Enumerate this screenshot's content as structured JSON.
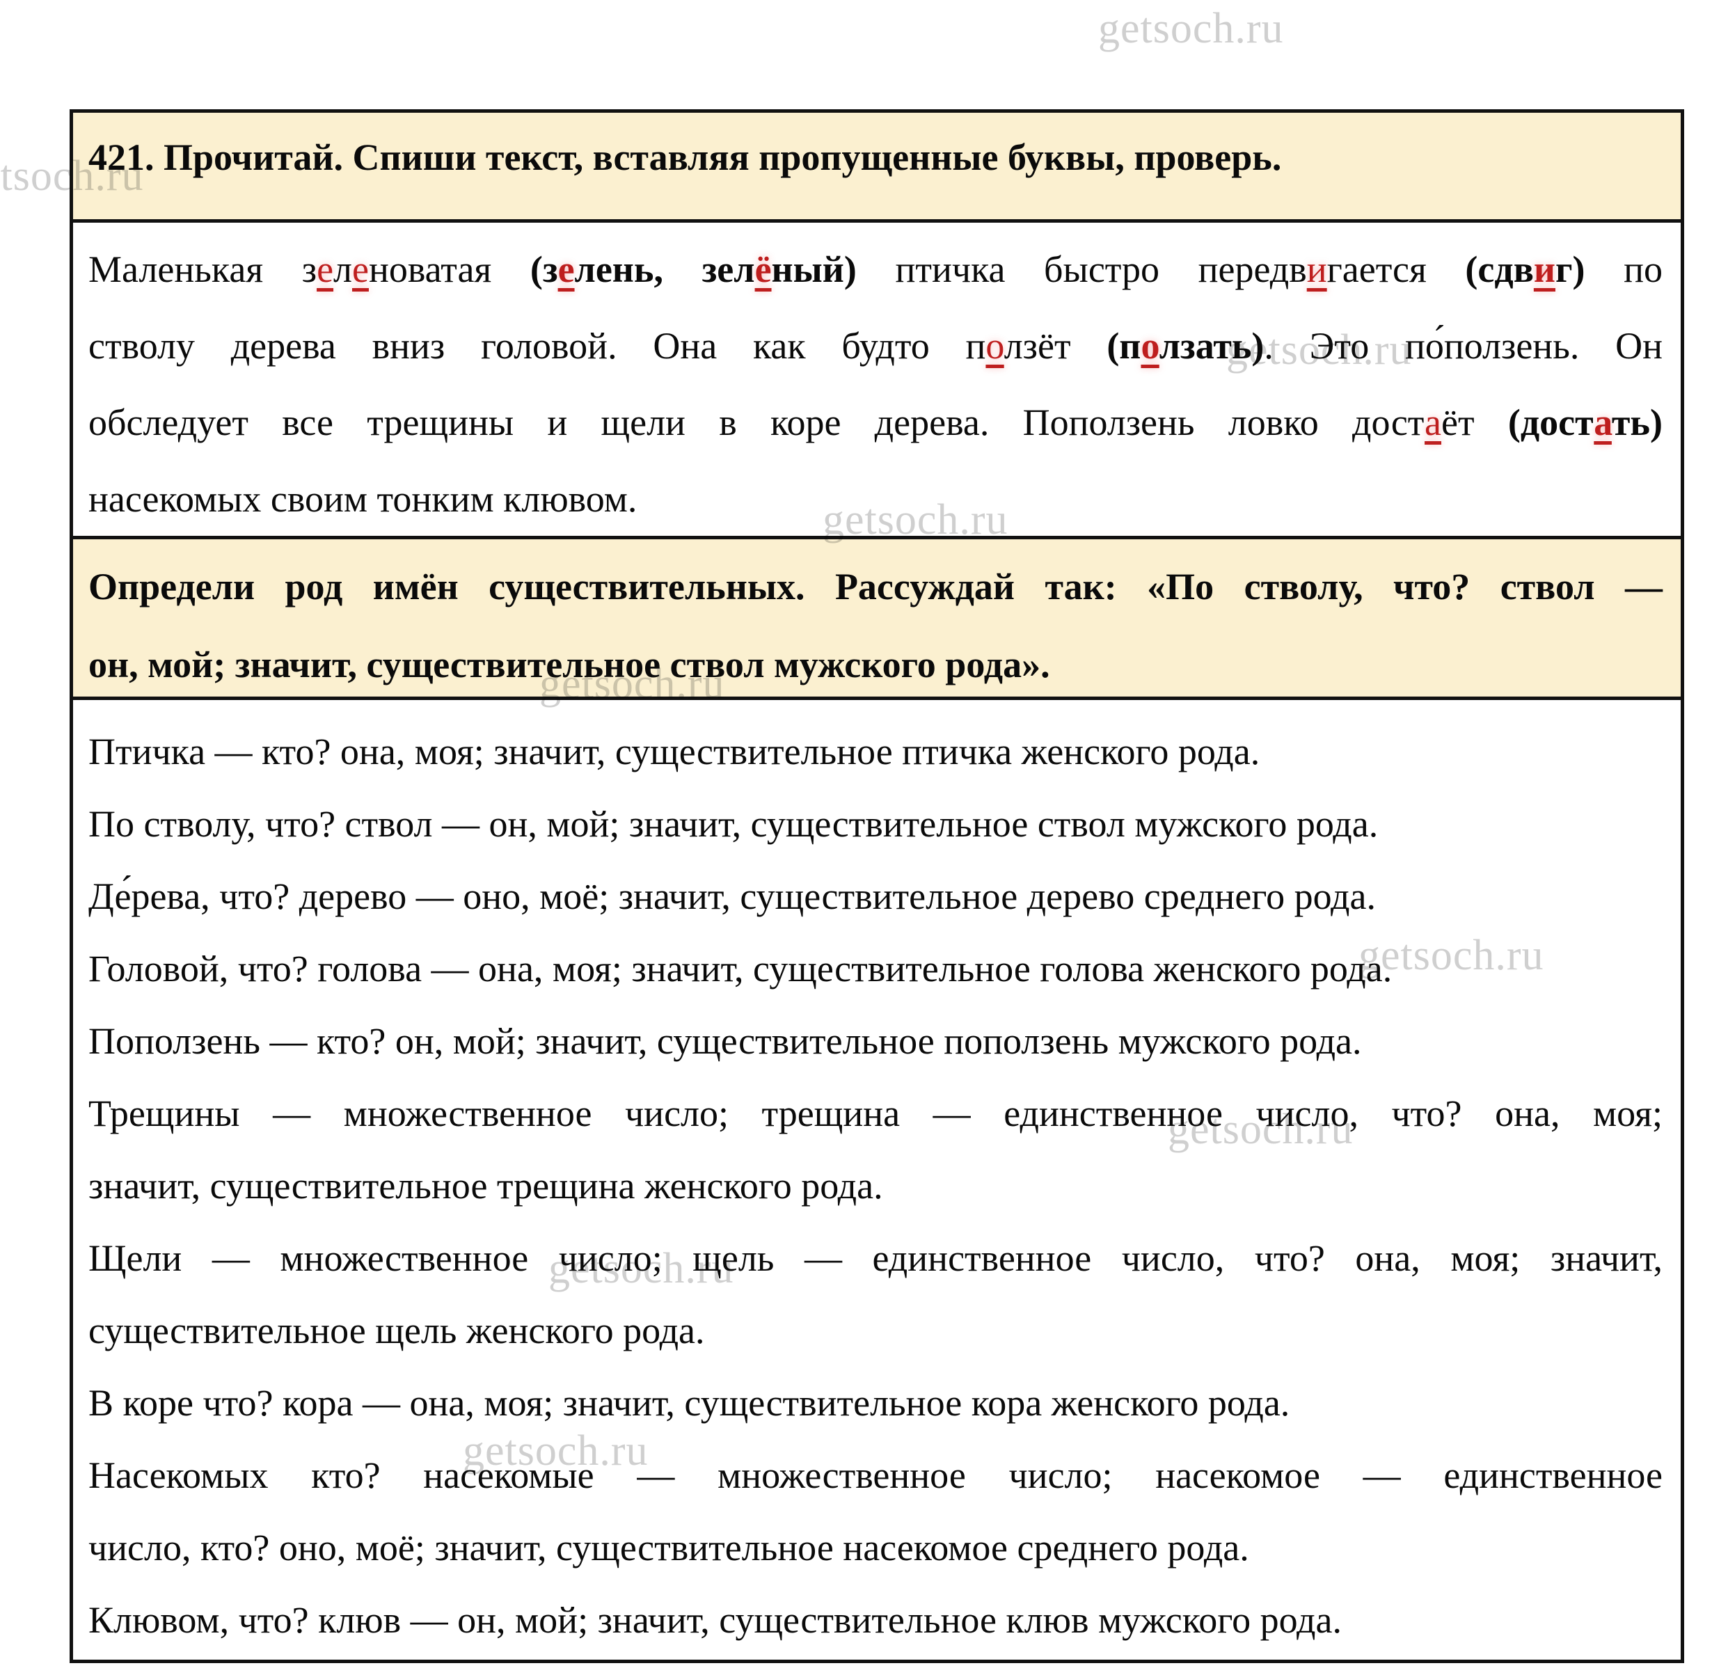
{
  "colors": {
    "cream": "#FBF0D0",
    "border": "#111111",
    "red": "#BE1E1E",
    "watermark_gray": "#CFCFCF"
  },
  "watermark": {
    "text": "getsoch.ru",
    "positions": [
      [
        1578,
        6
      ],
      [
        -60,
        218
      ],
      [
        1762,
        468
      ],
      [
        1182,
        712
      ],
      [
        775,
        948
      ],
      [
        1952,
        1338
      ],
      [
        1678,
        1588
      ],
      [
        788,
        1788
      ],
      [
        665,
        2050
      ]
    ]
  },
  "sections": [
    {
      "id": "task-header",
      "lines": [
        {
          "seg": [
            {
              "t": "421. Прочитай. Спиши текст, вставляя пропущенные буквы, проверь.",
              "s": "n"
            }
          ]
        }
      ]
    },
    {
      "id": "exercise-text",
      "lines": [
        {
          "just": true,
          "seg": [
            {
              "t": "Маленькая з",
              "s": "n"
            },
            {
              "t": "е",
              "s": "r"
            },
            {
              "t": "л",
              "s": "n"
            },
            {
              "t": "е",
              "s": "r"
            },
            {
              "t": "новатая ",
              "s": "n"
            },
            {
              "t": "(з",
              "s": "b"
            },
            {
              "t": "е",
              "s": "rb"
            },
            {
              "t": "лень, зел",
              "s": "b"
            },
            {
              "t": "ё",
              "s": "rb"
            },
            {
              "t": "ный)",
              "s": "b"
            },
            {
              "t": " птичка быстро передв",
              "s": "n"
            },
            {
              "t": "и",
              "s": "r"
            },
            {
              "t": "гается ",
              "s": "n"
            },
            {
              "t": "(сдв",
              "s": "b"
            },
            {
              "t": "и",
              "s": "rb"
            },
            {
              "t": "г)",
              "s": "b"
            },
            {
              "t": " по",
              "s": "n"
            }
          ]
        },
        {
          "just": true,
          "seg": [
            {
              "t": "стволу дерева вниз головой. Она как будто п",
              "s": "n"
            },
            {
              "t": "о",
              "s": "r"
            },
            {
              "t": "лзёт ",
              "s": "n"
            },
            {
              "t": "(п",
              "s": "b"
            },
            {
              "t": "о",
              "s": "rb"
            },
            {
              "t": "лзать)",
              "s": "b"
            },
            {
              "t": ". Это по́ползень. Он",
              "s": "n"
            }
          ]
        },
        {
          "just": true,
          "seg": [
            {
              "t": "обследует все трещины и щели в коре дерева. Поползень ловко дост",
              "s": "n"
            },
            {
              "t": "а",
              "s": "r"
            },
            {
              "t": "ёт ",
              "s": "n"
            },
            {
              "t": "(дост",
              "s": "b"
            },
            {
              "t": "а",
              "s": "rb"
            },
            {
              "t": "ть)",
              "s": "b"
            }
          ]
        },
        {
          "seg": [
            {
              "t": "насекомых своим тонким клювом.",
              "s": "n"
            }
          ]
        }
      ]
    },
    {
      "id": "instruction-box",
      "lines": [
        {
          "just": true,
          "seg": [
            {
              "t": "Определи род имён существительных. Рассуждай так: «По стволу, что? ствол —",
              "s": "n"
            }
          ]
        },
        {
          "seg": [
            {
              "t": "он, мой; значит, существительное ствол мужского рода».",
              "s": "n"
            }
          ]
        }
      ]
    },
    {
      "id": "analysis-text",
      "lines": [
        {
          "seg": [
            {
              "t": "Птичка — кто? она, моя; значит, существительное птичка женского рода.",
              "s": "n"
            }
          ]
        },
        {
          "seg": [
            {
              "t": "По стволу, что? ствол — он, мой; значит, существительное ствол мужского рода.",
              "s": "n"
            }
          ]
        },
        {
          "seg": [
            {
              "t": "Де́рева, что? дерево — оно, моё; значит, существительное дерево среднего рода.",
              "s": "n"
            }
          ]
        },
        {
          "seg": [
            {
              "t": "Головой, что? голова — она, моя; значит, существительное голова женского рода.",
              "s": "n"
            }
          ]
        },
        {
          "seg": [
            {
              "t": "Поползень — кто? он, мой; значит, существительное поползень мужского рода.",
              "s": "n"
            }
          ]
        },
        {
          "just": true,
          "seg": [
            {
              "t": "Трещины — множественное число; трещина — единственное число, что? она, моя;",
              "s": "n"
            }
          ]
        },
        {
          "seg": [
            {
              "t": "значит, существительное трещина женского рода.",
              "s": "n"
            }
          ]
        },
        {
          "just": true,
          "seg": [
            {
              "t": "Щели — множественное число; щель — единственное число, что? она, моя; значит,",
              "s": "n"
            }
          ]
        },
        {
          "seg": [
            {
              "t": "существительное щель женского рода.",
              "s": "n"
            }
          ]
        },
        {
          "seg": [
            {
              "t": "В коре что? кора — она, моя; значит, существительное кора женского рода.",
              "s": "n"
            }
          ]
        },
        {
          "just": true,
          "seg": [
            {
              "t": "Насекомых кто? насекомые — множественное число; насекомое — единственное",
              "s": "n"
            }
          ]
        },
        {
          "seg": [
            {
              "t": "число, кто? оно, моё; значит, существительное насекомое среднего рода.",
              "s": "n"
            }
          ]
        },
        {
          "seg": [
            {
              "t": "Клювом, что? клюв — он, мой; значит, существительное клюв мужского рода.",
              "s": "n"
            }
          ]
        }
      ]
    }
  ]
}
